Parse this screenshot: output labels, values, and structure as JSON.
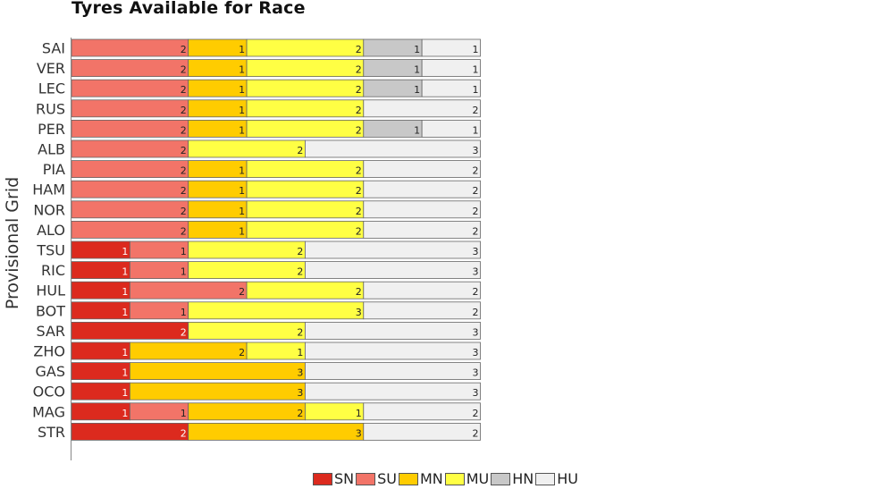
{
  "chart_data": {
    "type": "bar",
    "orientation": "horizontal",
    "stacked": true,
    "title": "Tyres Available for Race",
    "ylabel": "Provisional Grid",
    "xlabel": "",
    "xlim": [
      0,
      14
    ],
    "categories": [
      "SAI",
      "VER",
      "LEC",
      "RUS",
      "PER",
      "ALB",
      "PIA",
      "HAM",
      "NOR",
      "ALO",
      "TSU",
      "RIC",
      "HUL",
      "BOT",
      "SAR",
      "ZHO",
      "GAS",
      "OCO",
      "MAG",
      "STR"
    ],
    "series": [
      {
        "name": "SN",
        "color": "#dc2a1e",
        "values": [
          0,
          0,
          0,
          0,
          0,
          0,
          0,
          0,
          0,
          0,
          1,
          1,
          1,
          1,
          2,
          1,
          1,
          1,
          1,
          2
        ]
      },
      {
        "name": "SU",
        "color": "#f27468",
        "values": [
          2,
          2,
          2,
          2,
          2,
          2,
          2,
          2,
          2,
          2,
          1,
          1,
          2,
          1,
          0,
          0,
          0,
          0,
          1,
          0
        ]
      },
      {
        "name": "MN",
        "color": "#ffcc00",
        "values": [
          1,
          1,
          1,
          1,
          1,
          0,
          1,
          1,
          1,
          1,
          0,
          0,
          0,
          0,
          0,
          2,
          3,
          3,
          2,
          3
        ]
      },
      {
        "name": "MU",
        "color": "#ffff44",
        "values": [
          2,
          2,
          2,
          2,
          2,
          2,
          2,
          2,
          2,
          2,
          2,
          2,
          2,
          3,
          2,
          1,
          0,
          0,
          1,
          0
        ]
      },
      {
        "name": "HN",
        "color": "#c8c8c8",
        "values": [
          1,
          1,
          1,
          0,
          1,
          0,
          0,
          0,
          0,
          0,
          0,
          0,
          0,
          0,
          0,
          0,
          0,
          0,
          0,
          0
        ]
      },
      {
        "name": "HU",
        "color": "#f0f0f0",
        "values": [
          1,
          1,
          1,
          2,
          1,
          3,
          2,
          2,
          2,
          2,
          3,
          3,
          2,
          2,
          3,
          3,
          3,
          3,
          2,
          2
        ]
      }
    ],
    "grid": false,
    "legend_position": "bottom"
  }
}
